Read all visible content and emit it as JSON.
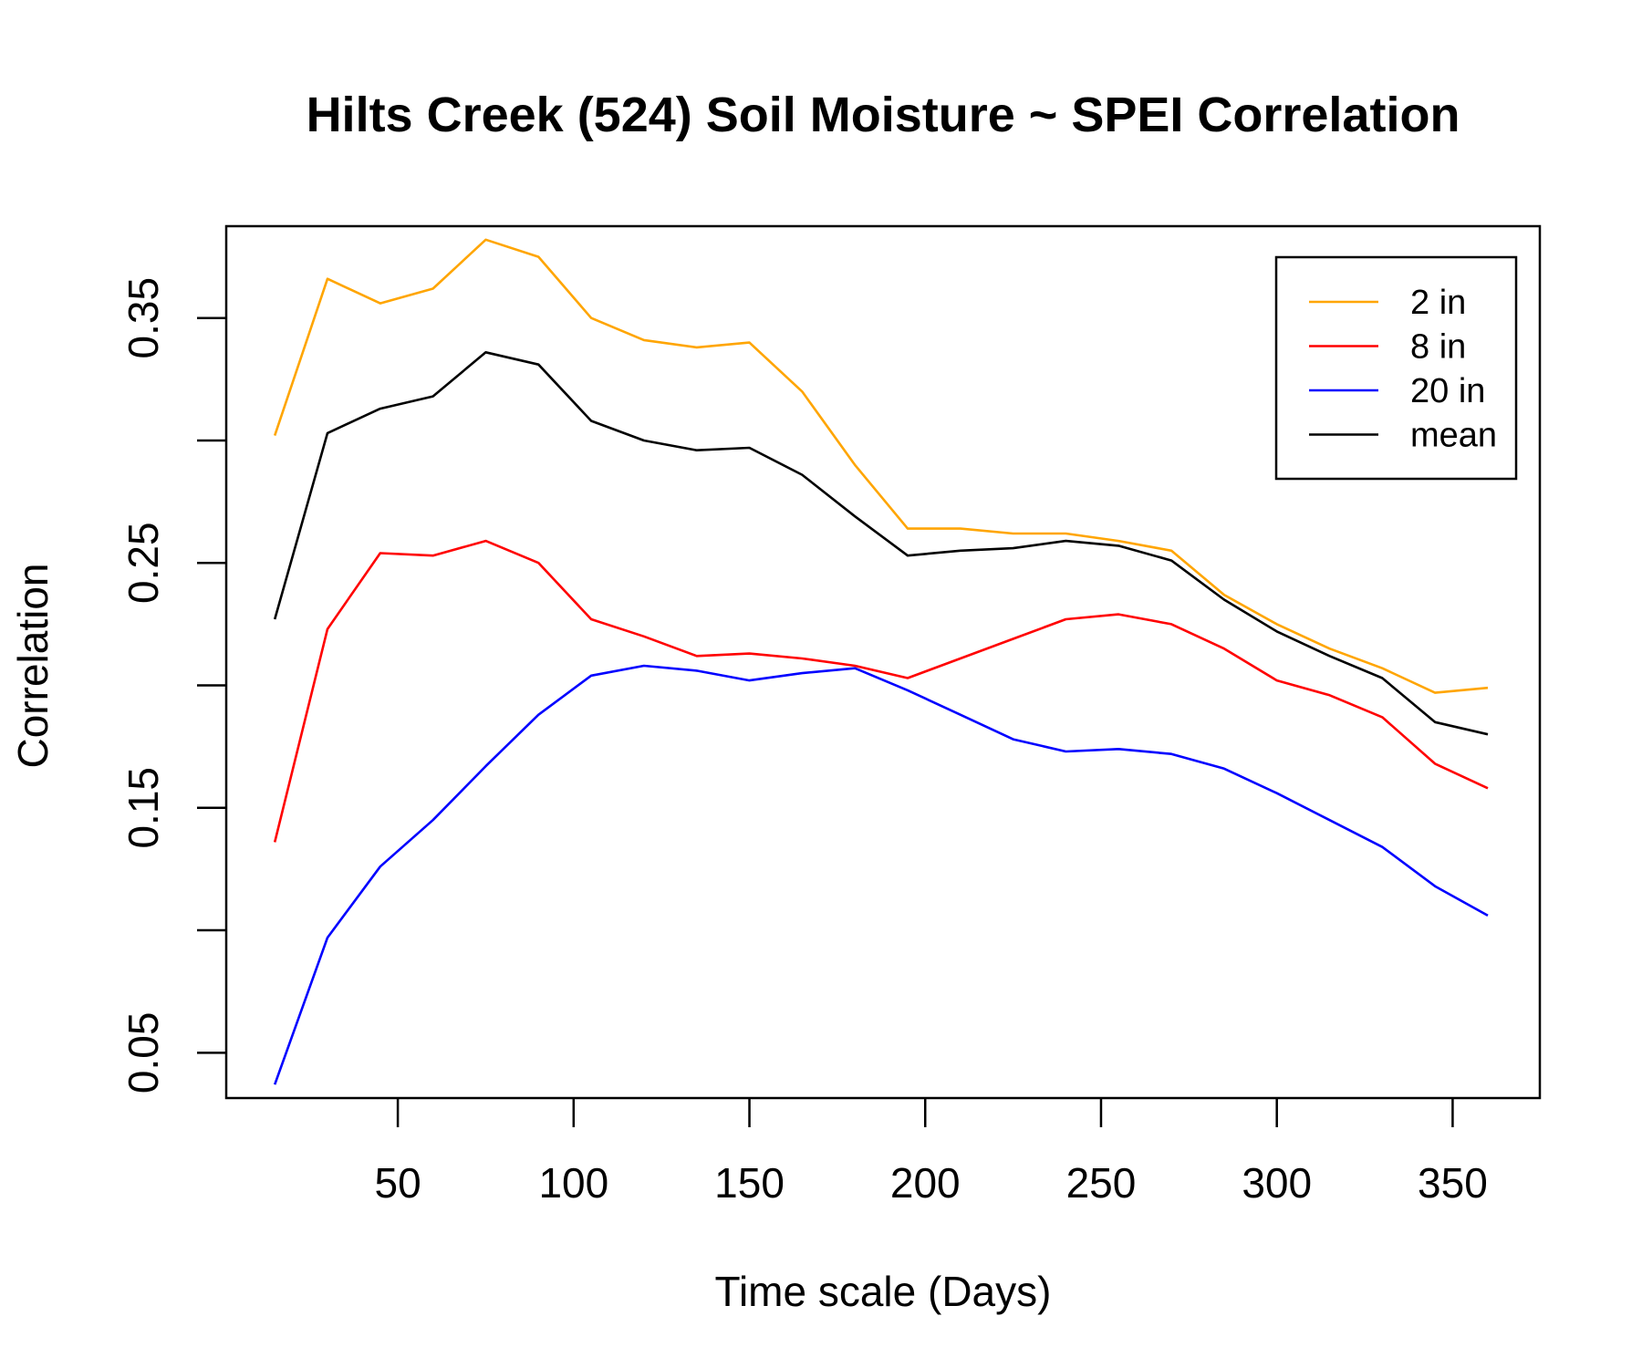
{
  "chart_data": {
    "type": "line",
    "title": "Hilts Creek (524) Soil Moisture ~ SPEI Correlation",
    "xlabel": "Time scale (Days)",
    "ylabel": "Correlation",
    "xlim": [
      1.2,
      374.8
    ],
    "ylim": [
      0.0315,
      0.3875
    ],
    "x_ticks": [
      50,
      100,
      150,
      200,
      250,
      300,
      350
    ],
    "y_ticks": [
      0.05,
      0.1,
      0.15,
      0.2,
      0.25,
      0.3,
      0.35
    ],
    "y_tick_labels": [
      "0.05",
      "",
      "0.15",
      "",
      "0.25",
      "",
      "0.35"
    ],
    "grid": false,
    "legend_position": "top-right",
    "x": [
      15,
      30,
      45,
      60,
      75,
      90,
      105,
      120,
      135,
      150,
      165,
      180,
      195,
      210,
      225,
      240,
      255,
      270,
      285,
      300,
      315,
      330,
      345,
      360
    ],
    "series": [
      {
        "name": "2 in",
        "color": "#FFA500",
        "values": [
          0.302,
          0.366,
          0.356,
          0.362,
          0.382,
          0.375,
          0.35,
          0.341,
          0.338,
          0.34,
          0.32,
          0.29,
          0.264,
          0.264,
          0.262,
          0.262,
          0.259,
          0.255,
          0.237,
          0.225,
          0.215,
          0.207,
          0.197,
          0.199
        ]
      },
      {
        "name": "8 in",
        "color": "#FF0000",
        "values": [
          0.136,
          0.223,
          0.254,
          0.253,
          0.259,
          0.25,
          0.227,
          0.22,
          0.212,
          0.213,
          0.211,
          0.208,
          0.203,
          0.211,
          0.219,
          0.227,
          0.229,
          0.225,
          0.215,
          0.202,
          0.196,
          0.187,
          0.168,
          0.158
        ]
      },
      {
        "name": "20 in",
        "color": "#0000FF",
        "values": [
          0.037,
          0.097,
          0.126,
          0.145,
          0.167,
          0.188,
          0.204,
          0.208,
          0.206,
          0.202,
          0.205,
          0.207,
          0.198,
          0.188,
          0.178,
          0.173,
          0.174,
          0.172,
          0.166,
          0.156,
          0.145,
          0.134,
          0.118,
          0.106
        ]
      },
      {
        "name": "mean",
        "color": "#000000",
        "values": [
          0.227,
          0.303,
          0.313,
          0.318,
          0.336,
          0.331,
          0.308,
          0.3,
          0.296,
          0.297,
          0.286,
          0.269,
          0.253,
          0.255,
          0.256,
          0.259,
          0.257,
          0.251,
          0.235,
          0.222,
          0.212,
          0.203,
          0.185,
          0.18
        ]
      }
    ]
  }
}
